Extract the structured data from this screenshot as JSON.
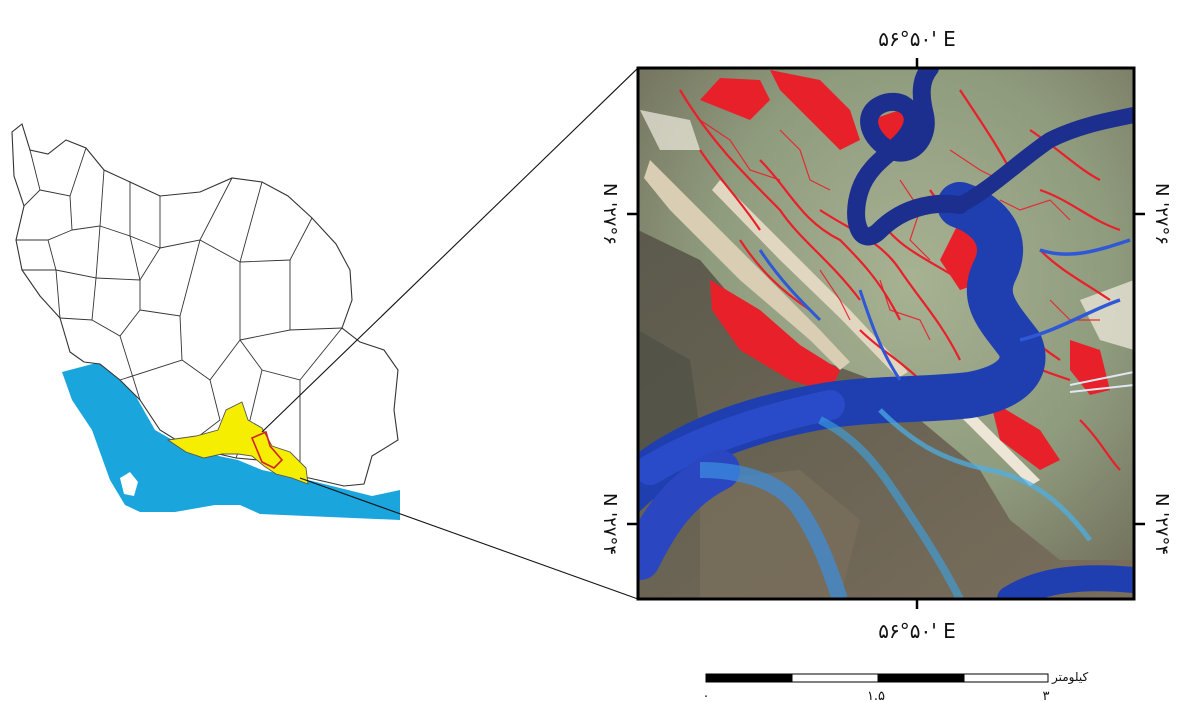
{
  "coordinates": {
    "top_longitude": "۵۶°۵۰' E",
    "bottom_longitude": "۵۶°۵۰' E",
    "left_upper_latitude": "N '۲۷°۶",
    "left_lower_latitude": "N '۲۷°۴",
    "right_upper_latitude": "N '۲۷°۶",
    "right_lower_latitude": "N '۲۷°۴"
  },
  "scale_bar": {
    "unit": "کیلومتر",
    "ticks": [
      "۰",
      "۱.۵",
      "۳"
    ]
  },
  "colors": {
    "sea": "#1aa6dd",
    "study_province": "#f5ee00",
    "study_area_outline": "#d62020",
    "province_border": "#333333",
    "frame": "#000000",
    "vegetation_false_color": "#e8202a",
    "water_false_color": "#1f3fb0",
    "land_false_color": "#8c9a7a"
  },
  "icons": [
    "iran-province-map",
    "satellite-inset-image",
    "scale-bar"
  ]
}
